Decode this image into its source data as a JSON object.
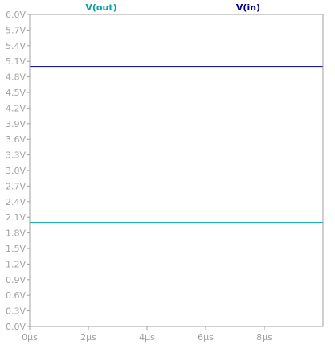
{
  "chart_data": {
    "type": "line",
    "title": "",
    "xlabel": "",
    "ylabel": "",
    "x_unit": "µs",
    "y_unit": "V",
    "xlim": [
      0,
      10
    ],
    "ylim": [
      0,
      6
    ],
    "x_ticks": [
      "0µs",
      "2µs",
      "4µs",
      "6µs",
      "8µs"
    ],
    "y_ticks": [
      "0.0V",
      "0.3V",
      "0.6V",
      "0.9V",
      "1.2V",
      "1.5V",
      "1.8V",
      "2.1V",
      "2.4V",
      "2.7V",
      "3.0V",
      "3.3V",
      "3.6V",
      "3.9V",
      "4.2V",
      "4.5V",
      "4.8V",
      "5.1V",
      "5.4V",
      "5.7V",
      "6.0V"
    ],
    "grid": false,
    "legend_position": "top",
    "series": [
      {
        "name": "V(out)",
        "color": "#00a0a0",
        "x": [
          0,
          10
        ],
        "y": [
          2.0,
          2.0
        ]
      },
      {
        "name": "V(in)",
        "color": "#00008b",
        "x": [
          0,
          10
        ],
        "y": [
          5.0,
          5.0
        ]
      }
    ],
    "axis_color": "#a0a0a0",
    "tick_label_color": "#a0a0a0"
  }
}
